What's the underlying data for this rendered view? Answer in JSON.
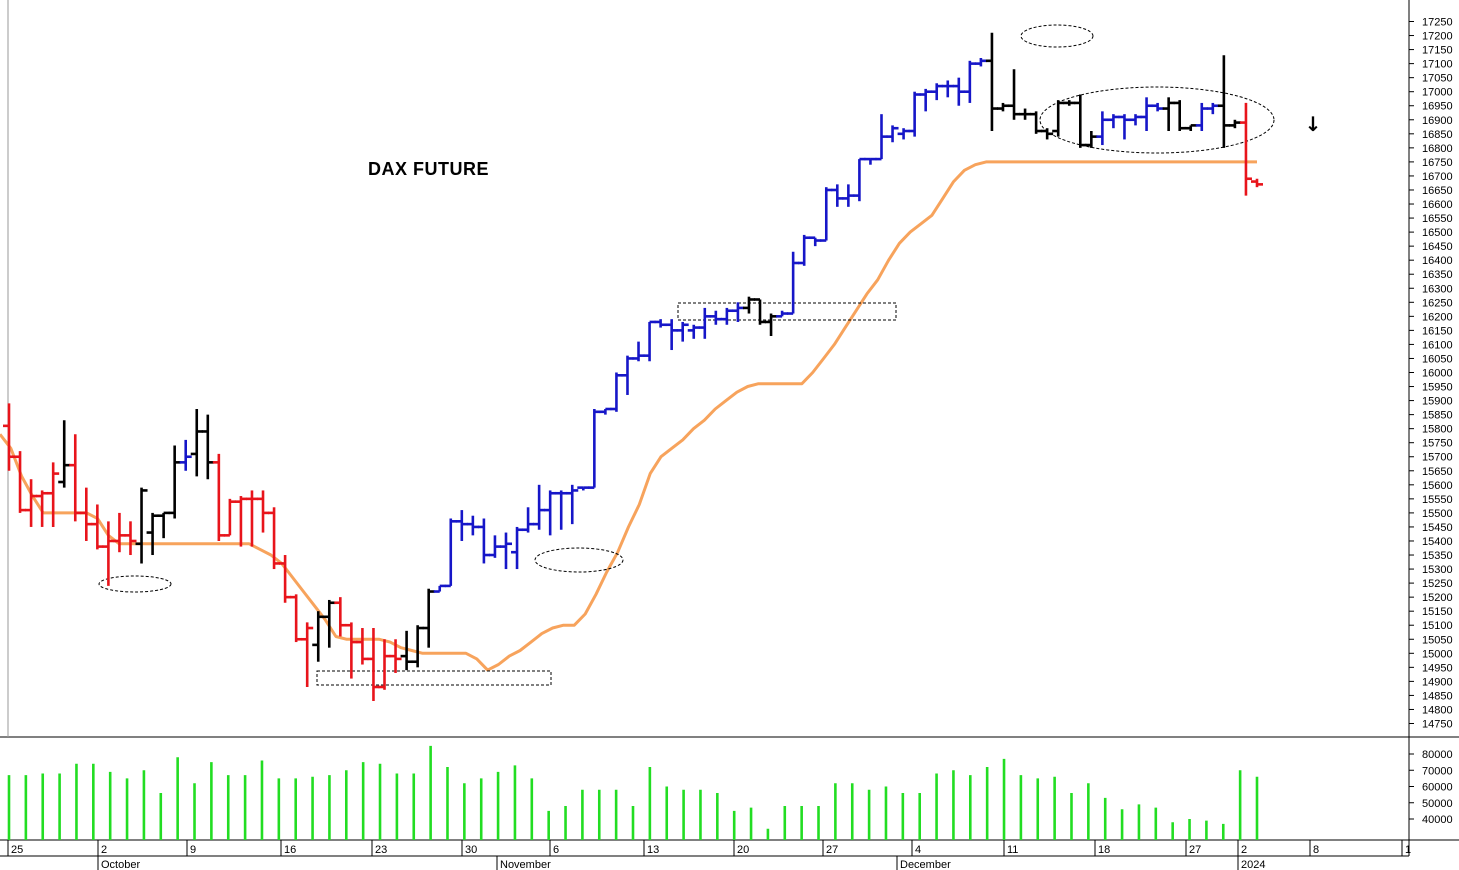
{
  "chart_data": {
    "type": "bar",
    "title": "DAX FUTURE",
    "price_axis": {
      "ticks": [
        14750,
        14800,
        14850,
        14900,
        14950,
        15000,
        15050,
        15100,
        15150,
        15200,
        15250,
        15300,
        15350,
        15400,
        15450,
        15500,
        15550,
        15600,
        15650,
        15700,
        15750,
        15800,
        15850,
        15900,
        15950,
        16000,
        16050,
        16100,
        16150,
        16200,
        16250,
        16300,
        16350,
        16400,
        16450,
        16500,
        16550,
        16600,
        16650,
        16700,
        16750,
        16800,
        16850,
        16900,
        16950,
        17000,
        17050,
        17100,
        17150,
        17200,
        17250
      ],
      "range": [
        14700,
        17300
      ]
    },
    "volume_axis": {
      "ticks": [
        40000,
        50000,
        60000,
        70000,
        80000
      ],
      "range": [
        14000,
        90000
      ]
    },
    "x_axis": {
      "tick_labels": [
        "25",
        "2",
        "9",
        "16",
        "23",
        "30",
        "6",
        "13",
        "20",
        "27",
        "4",
        "11",
        "18",
        "27",
        "2",
        "8",
        "1"
      ],
      "month_labels": [
        "October",
        "November",
        "December",
        "2024"
      ]
    },
    "colors": {
      "down": "#e8141b",
      "up": "#1616c8",
      "neutral": "#000000",
      "stop_line": "#f7a35c",
      "volume": "#22dd22"
    },
    "ohlc_series": [
      {
        "o": 15810,
        "h": 15890,
        "l": 15650,
        "c": 15700,
        "color": "down"
      },
      {
        "o": 15700,
        "h": 15720,
        "l": 15500,
        "c": 15510,
        "color": "down"
      },
      {
        "o": 15510,
        "h": 15620,
        "l": 15450,
        "c": 15560,
        "color": "down"
      },
      {
        "o": 15560,
        "h": 15580,
        "l": 15450,
        "c": 15570,
        "color": "down"
      },
      {
        "o": 15570,
        "h": 15680,
        "l": 15450,
        "c": 15640,
        "color": "down"
      },
      {
        "o": 15610,
        "h": 15830,
        "l": 15590,
        "c": 15670,
        "color": "neutral"
      },
      {
        "o": 15670,
        "h": 15780,
        "l": 15470,
        "c": 15500,
        "color": "down"
      },
      {
        "o": 15500,
        "h": 15590,
        "l": 15400,
        "c": 15460,
        "color": "down"
      },
      {
        "o": 15460,
        "h": 15530,
        "l": 15370,
        "c": 15380,
        "color": "down"
      },
      {
        "o": 15380,
        "h": 15470,
        "l": 15240,
        "c": 15400,
        "color": "down"
      },
      {
        "o": 15400,
        "h": 15500,
        "l": 15360,
        "c": 15420,
        "color": "down"
      },
      {
        "o": 15420,
        "h": 15470,
        "l": 15350,
        "c": 15400,
        "color": "down"
      },
      {
        "o": 15390,
        "h": 15590,
        "l": 15320,
        "c": 15580,
        "color": "neutral"
      },
      {
        "o": 15430,
        "h": 15500,
        "l": 15350,
        "c": 15490,
        "color": "neutral"
      },
      {
        "o": 15490,
        "h": 15500,
        "l": 15410,
        "c": 15500,
        "color": "neutral"
      },
      {
        "o": 15500,
        "h": 15740,
        "l": 15480,
        "c": 15680,
        "color": "neutral"
      },
      {
        "o": 15680,
        "h": 15760,
        "l": 15650,
        "c": 15700,
        "color": "up"
      },
      {
        "o": 15710,
        "h": 15870,
        "l": 15630,
        "c": 15790,
        "color": "neutral"
      },
      {
        "o": 15790,
        "h": 15850,
        "l": 15620,
        "c": 15680,
        "color": "neutral"
      },
      {
        "o": 15680,
        "h": 15710,
        "l": 15400,
        "c": 15420,
        "color": "down"
      },
      {
        "o": 15420,
        "h": 15550,
        "l": 15420,
        "c": 15540,
        "color": "down"
      },
      {
        "o": 15540,
        "h": 15560,
        "l": 15380,
        "c": 15550,
        "color": "down"
      },
      {
        "o": 15550,
        "h": 15580,
        "l": 15380,
        "c": 15550,
        "color": "down"
      },
      {
        "o": 15550,
        "h": 15580,
        "l": 15430,
        "c": 15500,
        "color": "down"
      },
      {
        "o": 15500,
        "h": 15520,
        "l": 15300,
        "c": 15320,
        "color": "down"
      },
      {
        "o": 15320,
        "h": 15350,
        "l": 15180,
        "c": 15200,
        "color": "down"
      },
      {
        "o": 15200,
        "h": 15210,
        "l": 15040,
        "c": 15050,
        "color": "down"
      },
      {
        "o": 15050,
        "h": 15110,
        "l": 14880,
        "c": 15090,
        "color": "down"
      },
      {
        "o": 15030,
        "h": 15150,
        "l": 14970,
        "c": 15130,
        "color": "neutral"
      },
      {
        "o": 15130,
        "h": 15190,
        "l": 15020,
        "c": 15180,
        "color": "neutral"
      },
      {
        "o": 15180,
        "h": 15200,
        "l": 15060,
        "c": 15100,
        "color": "down"
      },
      {
        "o": 15100,
        "h": 15110,
        "l": 14910,
        "c": 15040,
        "color": "down"
      },
      {
        "o": 15040,
        "h": 15090,
        "l": 14960,
        "c": 14980,
        "color": "down"
      },
      {
        "o": 14980,
        "h": 15090,
        "l": 14830,
        "c": 14880,
        "color": "down"
      },
      {
        "o": 14880,
        "h": 15050,
        "l": 14870,
        "c": 14990,
        "color": "down"
      },
      {
        "o": 14990,
        "h": 15050,
        "l": 14930,
        "c": 14980,
        "color": "down"
      },
      {
        "o": 14990,
        "h": 15080,
        "l": 14940,
        "c": 14970,
        "color": "neutral"
      },
      {
        "o": 14970,
        "h": 15100,
        "l": 14950,
        "c": 15090,
        "color": "neutral"
      },
      {
        "o": 15090,
        "h": 15230,
        "l": 15020,
        "c": 15220,
        "color": "neutral"
      },
      {
        "o": 15220,
        "h": 15240,
        "l": 15220,
        "c": 15240,
        "color": "up"
      },
      {
        "o": 15240,
        "h": 15480,
        "l": 15240,
        "c": 15470,
        "color": "up"
      },
      {
        "o": 15470,
        "h": 15510,
        "l": 15400,
        "c": 15460,
        "color": "up"
      },
      {
        "o": 15460,
        "h": 15490,
        "l": 15420,
        "c": 15450,
        "color": "up"
      },
      {
        "o": 15450,
        "h": 15480,
        "l": 15320,
        "c": 15350,
        "color": "up"
      },
      {
        "o": 15350,
        "h": 15420,
        "l": 15340,
        "c": 15380,
        "color": "up"
      },
      {
        "o": 15380,
        "h": 15430,
        "l": 15300,
        "c": 15390,
        "color": "up"
      },
      {
        "o": 15360,
        "h": 15450,
        "l": 15300,
        "c": 15440,
        "color": "up"
      },
      {
        "o": 15440,
        "h": 15520,
        "l": 15430,
        "c": 15460,
        "color": "up"
      },
      {
        "o": 15460,
        "h": 15600,
        "l": 15440,
        "c": 15510,
        "color": "up"
      },
      {
        "o": 15510,
        "h": 15580,
        "l": 15420,
        "c": 15570,
        "color": "up"
      },
      {
        "o": 15570,
        "h": 15580,
        "l": 15440,
        "c": 15570,
        "color": "up"
      },
      {
        "o": 15570,
        "h": 15600,
        "l": 15460,
        "c": 15580,
        "color": "up"
      },
      {
        "o": 15590,
        "h": 15590,
        "l": 15580,
        "c": 15590,
        "color": "up"
      },
      {
        "o": 15590,
        "h": 15870,
        "l": 15590,
        "c": 15860,
        "color": "up"
      },
      {
        "o": 15860,
        "h": 15870,
        "l": 15850,
        "c": 15870,
        "color": "up"
      },
      {
        "o": 15870,
        "h": 16000,
        "l": 15860,
        "c": 15990,
        "color": "up"
      },
      {
        "o": 15990,
        "h": 16060,
        "l": 15920,
        "c": 16050,
        "color": "up"
      },
      {
        "o": 16050,
        "h": 16110,
        "l": 16040,
        "c": 16060,
        "color": "up"
      },
      {
        "o": 16060,
        "h": 16180,
        "l": 16040,
        "c": 16180,
        "color": "up"
      },
      {
        "o": 16180,
        "h": 16190,
        "l": 16160,
        "c": 16170,
        "color": "up"
      },
      {
        "o": 16170,
        "h": 16190,
        "l": 16080,
        "c": 16150,
        "color": "up"
      },
      {
        "o": 16150,
        "h": 16180,
        "l": 16110,
        "c": 16170,
        "color": "up"
      },
      {
        "o": 16150,
        "h": 16170,
        "l": 16120,
        "c": 16160,
        "color": "up"
      },
      {
        "o": 16160,
        "h": 16230,
        "l": 16120,
        "c": 16200,
        "color": "up"
      },
      {
        "o": 16200,
        "h": 16220,
        "l": 16170,
        "c": 16190,
        "color": "up"
      },
      {
        "o": 16190,
        "h": 16230,
        "l": 16170,
        "c": 16220,
        "color": "up"
      },
      {
        "o": 16220,
        "h": 16250,
        "l": 16180,
        "c": 16230,
        "color": "up"
      },
      {
        "o": 16230,
        "h": 16270,
        "l": 16210,
        "c": 16260,
        "color": "neutral"
      },
      {
        "o": 16260,
        "h": 16260,
        "l": 16170,
        "c": 16180,
        "color": "neutral"
      },
      {
        "o": 16180,
        "h": 16210,
        "l": 16130,
        "c": 16200,
        "color": "neutral"
      },
      {
        "o": 16200,
        "h": 16220,
        "l": 16200,
        "c": 16210,
        "color": "up"
      },
      {
        "o": 16210,
        "h": 16430,
        "l": 16210,
        "c": 16390,
        "color": "up"
      },
      {
        "o": 16390,
        "h": 16490,
        "l": 16380,
        "c": 16480,
        "color": "up"
      },
      {
        "o": 16480,
        "h": 16480,
        "l": 16450,
        "c": 16470,
        "color": "up"
      },
      {
        "o": 16470,
        "h": 16660,
        "l": 16470,
        "c": 16650,
        "color": "up"
      },
      {
        "o": 16650,
        "h": 16670,
        "l": 16590,
        "c": 16620,
        "color": "up"
      },
      {
        "o": 16620,
        "h": 16670,
        "l": 16590,
        "c": 16630,
        "color": "up"
      },
      {
        "o": 16630,
        "h": 16760,
        "l": 16610,
        "c": 16760,
        "color": "up"
      },
      {
        "o": 16760,
        "h": 16760,
        "l": 16740,
        "c": 16760,
        "color": "up"
      },
      {
        "o": 16760,
        "h": 16920,
        "l": 16760,
        "c": 16840,
        "color": "up"
      },
      {
        "o": 16840,
        "h": 16880,
        "l": 16820,
        "c": 16870,
        "color": "up"
      },
      {
        "o": 16850,
        "h": 16870,
        "l": 16830,
        "c": 16860,
        "color": "up"
      },
      {
        "o": 16860,
        "h": 17000,
        "l": 16840,
        "c": 16990,
        "color": "up"
      },
      {
        "o": 16990,
        "h": 17010,
        "l": 16930,
        "c": 17000,
        "color": "up"
      },
      {
        "o": 17000,
        "h": 17030,
        "l": 16970,
        "c": 17020,
        "color": "up"
      },
      {
        "o": 17020,
        "h": 17040,
        "l": 16980,
        "c": 17020,
        "color": "up"
      },
      {
        "o": 17020,
        "h": 17050,
        "l": 16950,
        "c": 17000,
        "color": "up"
      },
      {
        "o": 17000,
        "h": 17110,
        "l": 16960,
        "c": 17100,
        "color": "up"
      },
      {
        "o": 17100,
        "h": 17120,
        "l": 17090,
        "c": 17110,
        "color": "up"
      },
      {
        "o": 17110,
        "h": 17210,
        "l": 16860,
        "c": 16940,
        "color": "neutral"
      },
      {
        "o": 16940,
        "h": 16960,
        "l": 16930,
        "c": 16950,
        "color": "neutral"
      },
      {
        "o": 16950,
        "h": 17080,
        "l": 16900,
        "c": 16920,
        "color": "neutral"
      },
      {
        "o": 16920,
        "h": 16940,
        "l": 16900,
        "c": 16920,
        "color": "neutral"
      },
      {
        "o": 16920,
        "h": 16930,
        "l": 16850,
        "c": 16860,
        "color": "neutral"
      },
      {
        "o": 16860,
        "h": 16870,
        "l": 16830,
        "c": 16850,
        "color": "neutral"
      },
      {
        "o": 16860,
        "h": 16970,
        "l": 16840,
        "c": 16960,
        "color": "neutral"
      },
      {
        "o": 16960,
        "h": 16970,
        "l": 16950,
        "c": 16960,
        "color": "neutral"
      },
      {
        "o": 16960,
        "h": 16990,
        "l": 16800,
        "c": 16810,
        "color": "neutral"
      },
      {
        "o": 16810,
        "h": 16860,
        "l": 16800,
        "c": 16840,
        "color": "neutral"
      },
      {
        "o": 16840,
        "h": 16930,
        "l": 16810,
        "c": 16900,
        "color": "up"
      },
      {
        "o": 16900,
        "h": 16920,
        "l": 16870,
        "c": 16910,
        "color": "up"
      },
      {
        "o": 16910,
        "h": 16920,
        "l": 16830,
        "c": 16900,
        "color": "up"
      },
      {
        "o": 16900,
        "h": 16920,
        "l": 16880,
        "c": 16910,
        "color": "up"
      },
      {
        "o": 16910,
        "h": 16980,
        "l": 16860,
        "c": 16950,
        "color": "up"
      },
      {
        "o": 16950,
        "h": 16960,
        "l": 16930,
        "c": 16940,
        "color": "up"
      },
      {
        "o": 16940,
        "h": 16980,
        "l": 16860,
        "c": 16960,
        "color": "neutral"
      },
      {
        "o": 16960,
        "h": 16970,
        "l": 16860,
        "c": 16870,
        "color": "neutral"
      },
      {
        "o": 16870,
        "h": 16880,
        "l": 16860,
        "c": 16880,
        "color": "neutral"
      },
      {
        "o": 16880,
        "h": 16960,
        "l": 16860,
        "c": 16940,
        "color": "up"
      },
      {
        "o": 16940,
        "h": 16960,
        "l": 16920,
        "c": 16950,
        "color": "up"
      },
      {
        "o": 16950,
        "h": 17130,
        "l": 16800,
        "c": 16880,
        "color": "neutral"
      },
      {
        "o": 16880,
        "h": 16900,
        "l": 16870,
        "c": 16890,
        "color": "neutral"
      },
      {
        "o": 16890,
        "h": 16960,
        "l": 16630,
        "c": 16690,
        "color": "down"
      },
      {
        "o": 16680,
        "h": 16690,
        "l": 16660,
        "c": 16670,
        "color": "down"
      }
    ],
    "stop_line": [
      15780,
      15730,
      15630,
      15560,
      15500,
      15500,
      15500,
      15500,
      15500,
      15480,
      15420,
      15390,
      15390,
      15390,
      15390,
      15390,
      15390,
      15390,
      15390,
      15390,
      15390,
      15390,
      15390,
      15390,
      15370,
      15350,
      15320,
      15270,
      15220,
      15170,
      15120,
      15060,
      15050,
      15050,
      15050,
      15050,
      15040,
      15020,
      15010,
      15000,
      15000,
      15000,
      15000,
      15000,
      14980,
      14940,
      14960,
      14990,
      15010,
      15040,
      15070,
      15090,
      15100,
      15100,
      15140,
      15210,
      15290,
      15360,
      15450,
      15530,
      15640,
      15700,
      15730,
      15760,
      15800,
      15830,
      15870,
      15900,
      15930,
      15950,
      15960,
      15960,
      15960,
      15960,
      15960,
      16000,
      16050,
      16100,
      16160,
      16220,
      16280,
      16330,
      16400,
      16460,
      16500,
      16530,
      16560,
      16620,
      16680,
      16720,
      16740,
      16750,
      16750,
      16750,
      16750,
      16750,
      16750,
      16750,
      16750,
      16750,
      16750,
      16750,
      16750,
      16750,
      16750,
      16750,
      16750,
      16750,
      16750,
      16750,
      16750,
      16750,
      16750,
      16750,
      16750,
      16750,
      16750
    ],
    "volume_series": [
      67000,
      67000,
      68000,
      68000,
      74000,
      74000,
      69000,
      65000,
      70000,
      56000,
      78000,
      62000,
      75000,
      67000,
      67000,
      76000,
      65000,
      65000,
      66000,
      67000,
      70000,
      75000,
      74000,
      68000,
      68000,
      85000,
      72000,
      62000,
      65000,
      69000,
      73000,
      65000,
      45000,
      48000,
      58000,
      58000,
      58000,
      48000,
      72000,
      60000,
      58000,
      58000,
      56000,
      45000,
      47000,
      34000,
      48000,
      48000,
      48000,
      62000,
      62000,
      58000,
      60000,
      56000,
      56000,
      68000,
      70000,
      67000,
      72000,
      77000,
      67000,
      65000,
      66000,
      56000,
      62000,
      53000,
      46000,
      49000,
      47000,
      38000,
      40000,
      39000,
      37000,
      70000,
      66000
    ]
  },
  "annotations": {
    "down_arrow_glyph": "↓"
  }
}
